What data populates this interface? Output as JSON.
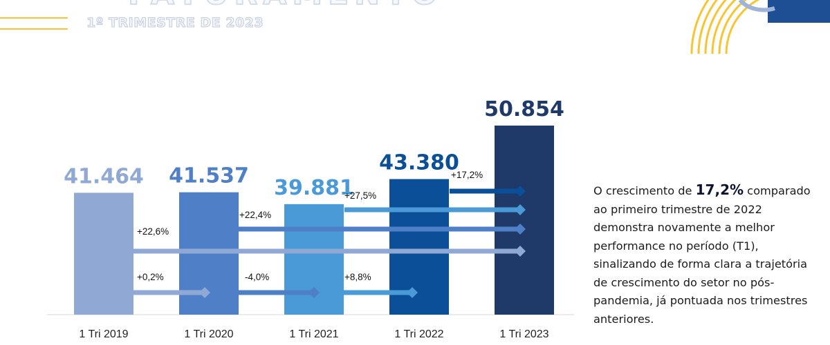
{
  "header": {
    "title_partial": "FATURAMENTO",
    "subtitle": "1º TRIMESTRE DE 2023"
  },
  "colors": {
    "bar_2019": "#8fa8d4",
    "bar_2020": "#4f7fc7",
    "bar_2021": "#4a9ad8",
    "bar_2022": "#0a4f97",
    "bar_2023": "#1f3a68",
    "accent_yellow": "#f7c531",
    "corner_blue": "#1e4f95"
  },
  "chart_data": {
    "type": "bar",
    "categories": [
      "1 Tri 2019",
      "1 Tri 2020",
      "1 Tri 2021",
      "1 Tri 2022",
      "1 Tri 2023"
    ],
    "values": [
      41464,
      41537,
      39881,
      43380,
      50854
    ],
    "value_labels": [
      "41.464",
      "41.537",
      "39.881",
      "43.380",
      "50.854"
    ],
    "ylim": [
      0,
      55000
    ],
    "grid": false,
    "growth_arrows": [
      {
        "from": "1 Tri 2022",
        "to": "1 Tri 2023",
        "label": "+17,2%"
      },
      {
        "from": "1 Tri 2021",
        "to": "1 Tri 2023",
        "label": "+27,5%"
      },
      {
        "from": "1 Tri 2020",
        "to": "1 Tri 2023",
        "label": "+22,4%"
      },
      {
        "from": "1 Tri 2019",
        "to": "1 Tri 2023",
        "label": "+22,6%"
      },
      {
        "from": "1 Tri 2019",
        "to": "1 Tri 2020",
        "label": "+0,2%"
      },
      {
        "from": "1 Tri 2020",
        "to": "1 Tri 2021",
        "label": "-4,0%"
      },
      {
        "from": "1 Tri 2021",
        "to": "1 Tri 2022",
        "label": "+8,8%"
      }
    ]
  },
  "commentary": {
    "before": "O crescimento de ",
    "highlight": "17,2%",
    "after": " comparado ao primeiro trimestre de 2022 demonstra novamente a melhor performance no período (T1), sinalizando de forma clara a trajetória de crescimento do setor no pós-pandemia, já pontuada nos  trimestres anteriores."
  }
}
